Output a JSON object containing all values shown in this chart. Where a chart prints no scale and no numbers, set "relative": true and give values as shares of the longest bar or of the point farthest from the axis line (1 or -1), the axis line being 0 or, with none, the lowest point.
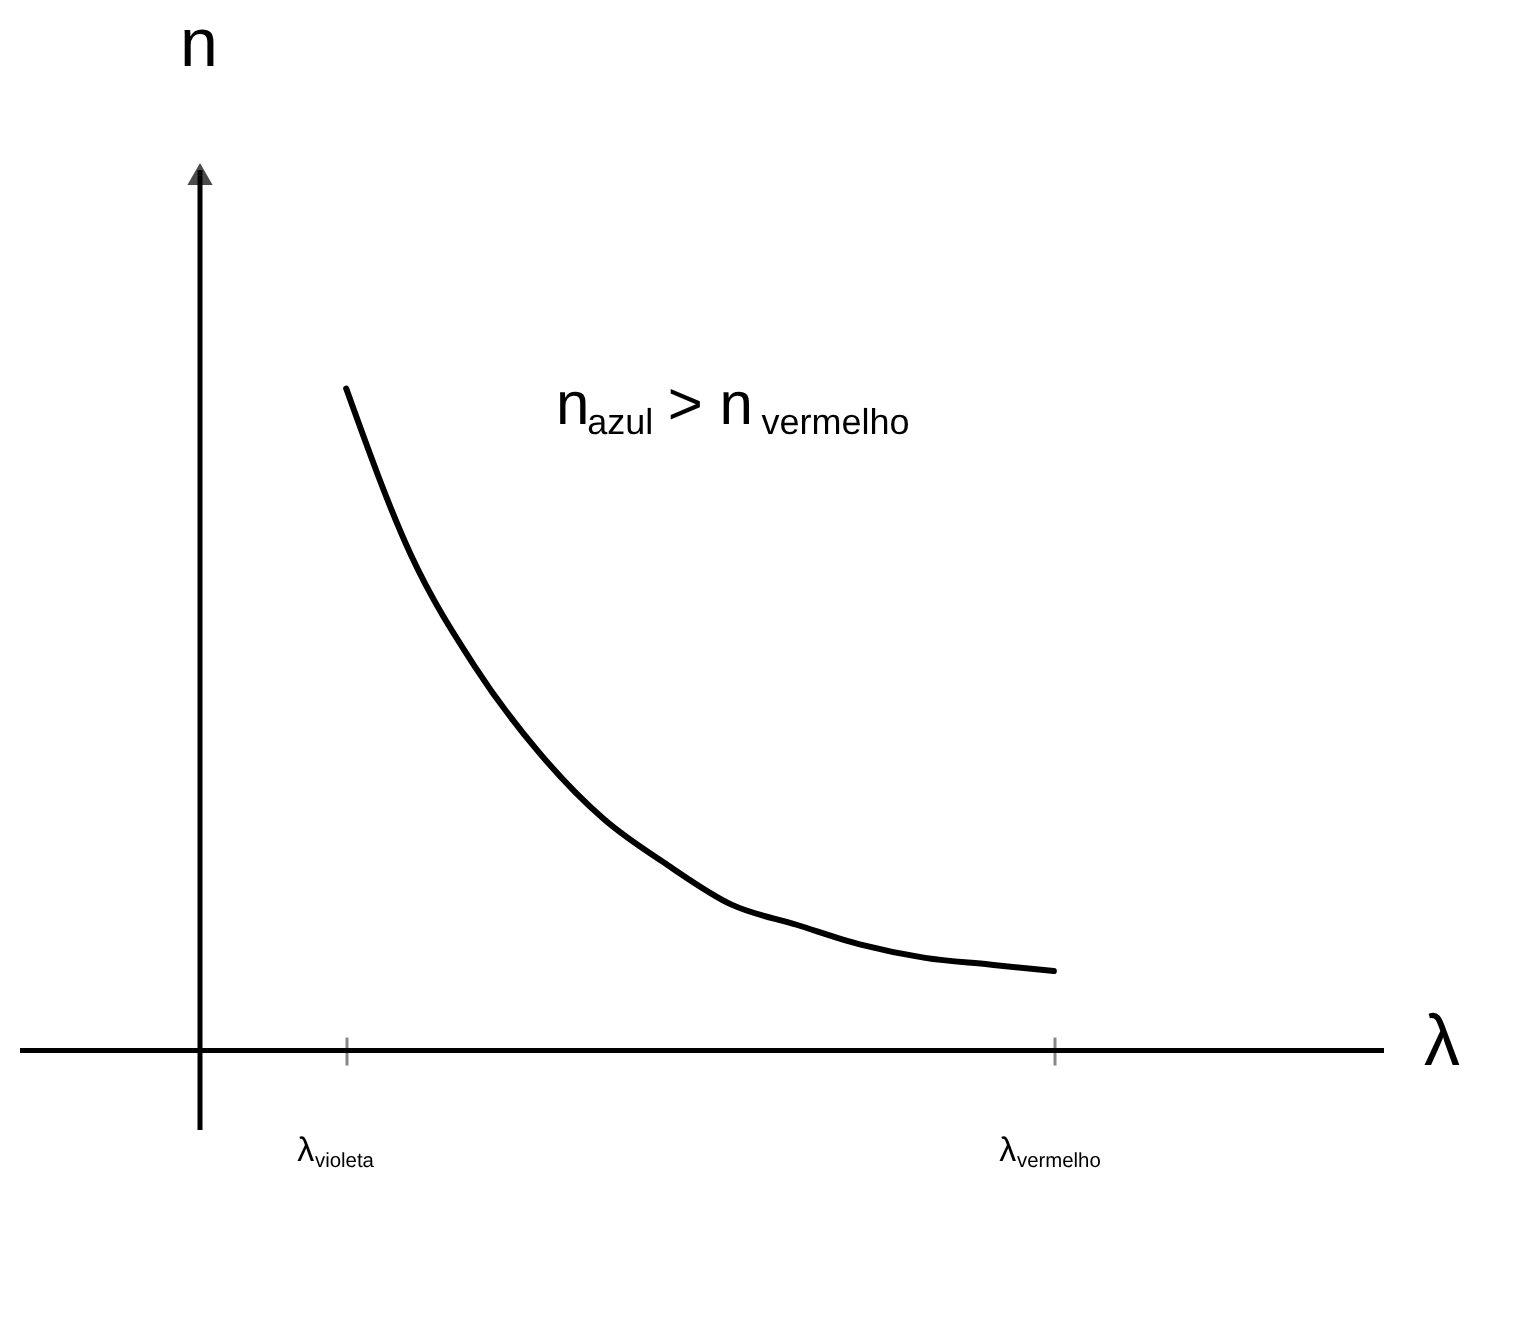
{
  "chart_data": {
    "type": "line",
    "relative": true,
    "xlabel": "λ",
    "ylabel": "n",
    "categories": [
      "λ$_{violeta}$",
      null,
      null,
      null,
      null,
      null,
      null,
      null,
      null,
      null,
      null,
      "λ$_{vermelho}$"
    ],
    "series": [
      {
        "color": "#000000",
        "line_style": "solid",
        "values": [
          1,
          0.75,
          0.58,
          0.45,
          0.35,
          0.28,
          0.22,
          0.19,
          0.16,
          0.14,
          0.13,
          0.12
        ]
      }
    ],
    "annotations": [
      "n$_{azul}$> n$_{vermelho}$"
    ]
  }
}
